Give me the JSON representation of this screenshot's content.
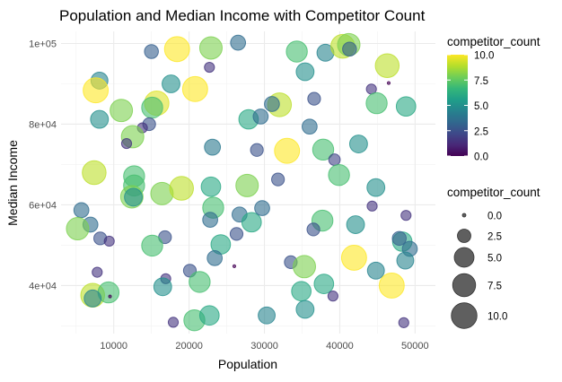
{
  "chart_data": {
    "type": "scatter",
    "title": "Population and Median Income with Competitor Count",
    "xlabel": "Population",
    "ylabel": "Median Income",
    "xlim": [
      3000,
      52700
    ],
    "ylim": [
      28100,
      103000
    ],
    "x_ticks": [
      10000,
      20000,
      30000,
      40000,
      50000
    ],
    "x_tick_labels": [
      "10000",
      "20000",
      "30000",
      "40000",
      "50000"
    ],
    "y_ticks": [
      40000,
      60000,
      80000,
      100000
    ],
    "y_tick_labels": [
      "4e+04",
      "6e+04",
      "8e+04",
      "1e+05"
    ],
    "grid": true,
    "point_alpha": 0.6,
    "color_legend": {
      "title": "competitor_count",
      "colormap": "viridis",
      "range": [
        0,
        10
      ],
      "breaks": [
        "10.0",
        "7.5",
        "5.0",
        "2.5",
        "0.0"
      ],
      "placement": "right"
    },
    "size_legend": {
      "title": "competitor_count",
      "breaks": [
        0,
        2.5,
        5,
        7.5,
        10
      ],
      "labels": [
        "0.0",
        "2.5",
        "5.0",
        "7.5",
        "10.0"
      ],
      "placement": "right",
      "color": "#5f5f5f"
    },
    "points": [
      {
        "x": 15000,
        "y": 98000,
        "c": 3
      },
      {
        "x": 18400,
        "y": 98600,
        "c": 10
      },
      {
        "x": 22900,
        "y": 98900,
        "c": 8
      },
      {
        "x": 26500,
        "y": 100200,
        "c": 3.5
      },
      {
        "x": 22700,
        "y": 94100,
        "c": 1.5
      },
      {
        "x": 8100,
        "y": 90800,
        "c": 4.5
      },
      {
        "x": 7600,
        "y": 88400,
        "c": 10
      },
      {
        "x": 17600,
        "y": 90000,
        "c": 5
      },
      {
        "x": 20800,
        "y": 88700,
        "c": 10
      },
      {
        "x": 15700,
        "y": 85200,
        "c": 9.5
      },
      {
        "x": 15100,
        "y": 84100,
        "c": 7
      },
      {
        "x": 11000,
        "y": 83400,
        "c": 8
      },
      {
        "x": 8100,
        "y": 81200,
        "c": 5
      },
      {
        "x": 14700,
        "y": 80000,
        "c": 2.5
      },
      {
        "x": 13800,
        "y": 79100,
        "c": 1.5
      },
      {
        "x": 12500,
        "y": 76900,
        "c": 8
      },
      {
        "x": 11700,
        "y": 75200,
        "c": 1.5
      },
      {
        "x": 23100,
        "y": 74300,
        "c": 4
      },
      {
        "x": 27900,
        "y": 81200,
        "c": 6
      },
      {
        "x": 7400,
        "y": 68000,
        "c": 9
      },
      {
        "x": 12700,
        "y": 67100,
        "c": 7
      },
      {
        "x": 34300,
        "y": 98000,
        "c": 7
      },
      {
        "x": 38100,
        "y": 97700,
        "c": 4.5
      },
      {
        "x": 40400,
        "y": 99300,
        "c": 9
      },
      {
        "x": 41200,
        "y": 99700,
        "c": 8
      },
      {
        "x": 41300,
        "y": 98600,
        "c": 3
      },
      {
        "x": 35400,
        "y": 93000,
        "c": 5
      },
      {
        "x": 46300,
        "y": 94500,
        "c": 9
      },
      {
        "x": 46500,
        "y": 90200,
        "c": 0
      },
      {
        "x": 44200,
        "y": 88700,
        "c": 1.5
      },
      {
        "x": 44900,
        "y": 85200,
        "c": 7
      },
      {
        "x": 48800,
        "y": 84400,
        "c": 6
      },
      {
        "x": 32000,
        "y": 84800,
        "c": 9
      },
      {
        "x": 31000,
        "y": 85000,
        "c": 3.5
      },
      {
        "x": 36600,
        "y": 86300,
        "c": 2.5
      },
      {
        "x": 29500,
        "y": 81900,
        "c": 3.5
      },
      {
        "x": 36000,
        "y": 79400,
        "c": 3.5
      },
      {
        "x": 29000,
        "y": 73600,
        "c": 2.5
      },
      {
        "x": 33000,
        "y": 73400,
        "c": 10
      },
      {
        "x": 37800,
        "y": 73700,
        "c": 7
      },
      {
        "x": 42500,
        "y": 75100,
        "c": 5
      },
      {
        "x": 39300,
        "y": 71200,
        "c": 2
      },
      {
        "x": 39900,
        "y": 67400,
        "c": 7
      },
      {
        "x": 31800,
        "y": 66300,
        "c": 2.5
      },
      {
        "x": 27700,
        "y": 64800,
        "c": 8
      },
      {
        "x": 44800,
        "y": 64300,
        "c": 5
      },
      {
        "x": 12700,
        "y": 64800,
        "c": 7
      },
      {
        "x": 12400,
        "y": 62000,
        "c": 8
      },
      {
        "x": 12600,
        "y": 61900,
        "c": 5
      },
      {
        "x": 16400,
        "y": 62800,
        "c": 8
      },
      {
        "x": 19000,
        "y": 64100,
        "c": 9
      },
      {
        "x": 22900,
        "y": 64500,
        "c": 6
      },
      {
        "x": 5700,
        "y": 58700,
        "c": 3.5
      },
      {
        "x": 6900,
        "y": 55100,
        "c": 3.5
      },
      {
        "x": 5200,
        "y": 54100,
        "c": 8
      },
      {
        "x": 8200,
        "y": 51700,
        "c": 2.5
      },
      {
        "x": 9400,
        "y": 51000,
        "c": 1.5
      },
      {
        "x": 23200,
        "y": 59300,
        "c": 7
      },
      {
        "x": 22800,
        "y": 56300,
        "c": 3.5
      },
      {
        "x": 26700,
        "y": 57600,
        "c": 3.5
      },
      {
        "x": 28300,
        "y": 55700,
        "c": 6
      },
      {
        "x": 26300,
        "y": 52800,
        "c": 2.5
      },
      {
        "x": 24200,
        "y": 50200,
        "c": 6
      },
      {
        "x": 23400,
        "y": 46800,
        "c": 3.5
      },
      {
        "x": 16800,
        "y": 52000,
        "c": 2.5
      },
      {
        "x": 15100,
        "y": 49900,
        "c": 7
      },
      {
        "x": 26000,
        "y": 44800,
        "c": 0
      },
      {
        "x": 7800,
        "y": 43300,
        "c": 1.5
      },
      {
        "x": 20100,
        "y": 43700,
        "c": 2.5
      },
      {
        "x": 21400,
        "y": 40900,
        "c": 7
      },
      {
        "x": 16900,
        "y": 41700,
        "c": 1.5
      },
      {
        "x": 16500,
        "y": 39700,
        "c": 5
      },
      {
        "x": 7200,
        "y": 37600,
        "c": 9
      },
      {
        "x": 9300,
        "y": 38300,
        "c": 7
      },
      {
        "x": 7200,
        "y": 36800,
        "c": 4.5
      },
      {
        "x": 9500,
        "y": 37300,
        "c": 0
      },
      {
        "x": 17900,
        "y": 30900,
        "c": 1.5
      },
      {
        "x": 20700,
        "y": 31400,
        "c": 7
      },
      {
        "x": 22700,
        "y": 32600,
        "c": 6
      },
      {
        "x": 29700,
        "y": 59200,
        "c": 3.5
      },
      {
        "x": 44300,
        "y": 59700,
        "c": 1.5
      },
      {
        "x": 48800,
        "y": 57400,
        "c": 1.5
      },
      {
        "x": 37700,
        "y": 56100,
        "c": 7
      },
      {
        "x": 36500,
        "y": 53900,
        "c": 2.5
      },
      {
        "x": 42100,
        "y": 55100,
        "c": 5
      },
      {
        "x": 48300,
        "y": 50900,
        "c": 6
      },
      {
        "x": 47900,
        "y": 51700,
        "c": 3
      },
      {
        "x": 49300,
        "y": 49100,
        "c": 3.5
      },
      {
        "x": 48700,
        "y": 46200,
        "c": 4.5
      },
      {
        "x": 41900,
        "y": 46900,
        "c": 10
      },
      {
        "x": 33500,
        "y": 45800,
        "c": 2.5
      },
      {
        "x": 35300,
        "y": 44700,
        "c": 8
      },
      {
        "x": 44800,
        "y": 43700,
        "c": 4.5
      },
      {
        "x": 46900,
        "y": 40000,
        "c": 10
      },
      {
        "x": 37900,
        "y": 40400,
        "c": 6
      },
      {
        "x": 34900,
        "y": 38600,
        "c": 6
      },
      {
        "x": 39100,
        "y": 37400,
        "c": 1.5
      },
      {
        "x": 35400,
        "y": 34100,
        "c": 5
      },
      {
        "x": 30300,
        "y": 32600,
        "c": 4.5
      },
      {
        "x": 48500,
        "y": 30800,
        "c": 1.5
      }
    ]
  }
}
